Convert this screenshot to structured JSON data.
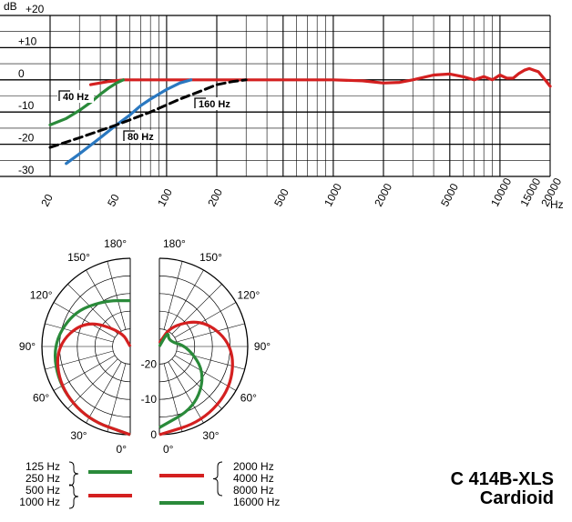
{
  "chart_data": [
    {
      "type": "line",
      "title": "",
      "xlabel": "Hz",
      "ylabel": "dB",
      "x_scale": "log",
      "xlim": [
        20,
        20000
      ],
      "ylim": [
        -30,
        20
      ],
      "x_ticks": [
        "20",
        "50",
        "100",
        "200",
        "500",
        "1000",
        "2000",
        "5000",
        "10000",
        "15000",
        "20000"
      ],
      "y_ticks": [
        "+20",
        "+10",
        "0",
        "-10",
        "-20",
        "-30"
      ],
      "series": [
        {
          "name": "",
          "color": "#d42020",
          "style": "solid",
          "x": [
            35,
            45,
            55,
            70,
            100,
            200,
            400,
            700,
            1000,
            1500,
            2000,
            2500,
            3000,
            4000,
            5000,
            6000,
            7000,
            8000,
            9000,
            10000,
            11000,
            12000,
            13000,
            14000,
            15000,
            16000,
            17000,
            18000,
            19000,
            20000
          ],
          "y": [
            -1.5,
            -0.5,
            0,
            0,
            0,
            0,
            0,
            0,
            0,
            -0.3,
            -1,
            -0.8,
            0,
            1.5,
            1.8,
            1,
            0,
            1,
            0,
            1.5,
            0.5,
            0.5,
            2,
            3,
            3.5,
            3,
            2.5,
            1,
            -0.5,
            -2
          ]
        },
        {
          "name": "",
          "color": "#2a8a3a",
          "style": "solid",
          "x": [
            20,
            25,
            30,
            35,
            40,
            45,
            50,
            55
          ],
          "y": [
            -14,
            -12,
            -9.5,
            -7,
            -4.5,
            -2.5,
            -1,
            0
          ]
        },
        {
          "name": "",
          "color": "#2a78c0",
          "style": "solid",
          "x": [
            25,
            30,
            40,
            50,
            60,
            70,
            80,
            100,
            120,
            140
          ],
          "y": [
            -26,
            -23,
            -18,
            -14,
            -11,
            -8,
            -6,
            -3,
            -1,
            0
          ]
        },
        {
          "name": "",
          "color": "#000000",
          "style": "dashed",
          "x": [
            20,
            30,
            50,
            80,
            120,
            160,
            200,
            250,
            300
          ],
          "y": [
            -21,
            -18,
            -14,
            -10,
            -6,
            -3.5,
            -1.5,
            -0.5,
            0
          ]
        }
      ],
      "annotations": [
        "40 Hz",
        "80 Hz",
        "160 Hz"
      ]
    },
    {
      "type": "polar",
      "title": "",
      "angle_labels": [
        "180°",
        "150°",
        "120°",
        "90°",
        "60°",
        "30°",
        "0°"
      ],
      "radial_labels": [
        "-20",
        "-10",
        "0"
      ],
      "rlim": [
        -25,
        0
      ],
      "series": [
        {
          "name": "125 Hz, 250 Hz",
          "side": "left",
          "color": "#2a8a3a",
          "angles": [
            0,
            30,
            60,
            90,
            120,
            150,
            180
          ],
          "values": [
            0,
            -1,
            -2,
            -3,
            -6,
            -10,
            -12
          ]
        },
        {
          "name": "500 Hz, 1000 Hz",
          "side": "left",
          "color": "#d42020",
          "angles": [
            0,
            30,
            60,
            90,
            120,
            150,
            180
          ],
          "values": [
            0,
            -1,
            -2,
            -4,
            -10,
            -20,
            -25
          ]
        },
        {
          "name": "2000 Hz, 4000 Hz, 8000 Hz",
          "side": "right",
          "color": "#d42020",
          "angles": [
            0,
            30,
            60,
            90,
            120,
            150,
            180
          ],
          "values": [
            0,
            -0.5,
            -1.5,
            -4,
            -10,
            -18,
            -24
          ]
        },
        {
          "name": "16000 Hz",
          "side": "right",
          "color": "#2a8a3a",
          "angles": [
            0,
            30,
            60,
            90,
            120,
            150,
            180
          ],
          "values": [
            -2,
            -5,
            -10,
            -17,
            -22,
            -20,
            -25
          ]
        }
      ]
    }
  ],
  "legend": {
    "left_top": [
      "125 Hz",
      "250 Hz"
    ],
    "left_bottom": [
      "500 Hz",
      "1000 Hz"
    ],
    "right_top": [
      "2000 Hz",
      "4000 Hz",
      "8000 Hz"
    ],
    "right_bottom": [
      "16000 Hz"
    ]
  },
  "product": {
    "model": "C 414B-XLS",
    "pattern": "Cardioid"
  },
  "colors": {
    "red": "#d42020",
    "green": "#2a8a3a",
    "blue": "#2a78c0",
    "black": "#000000"
  }
}
